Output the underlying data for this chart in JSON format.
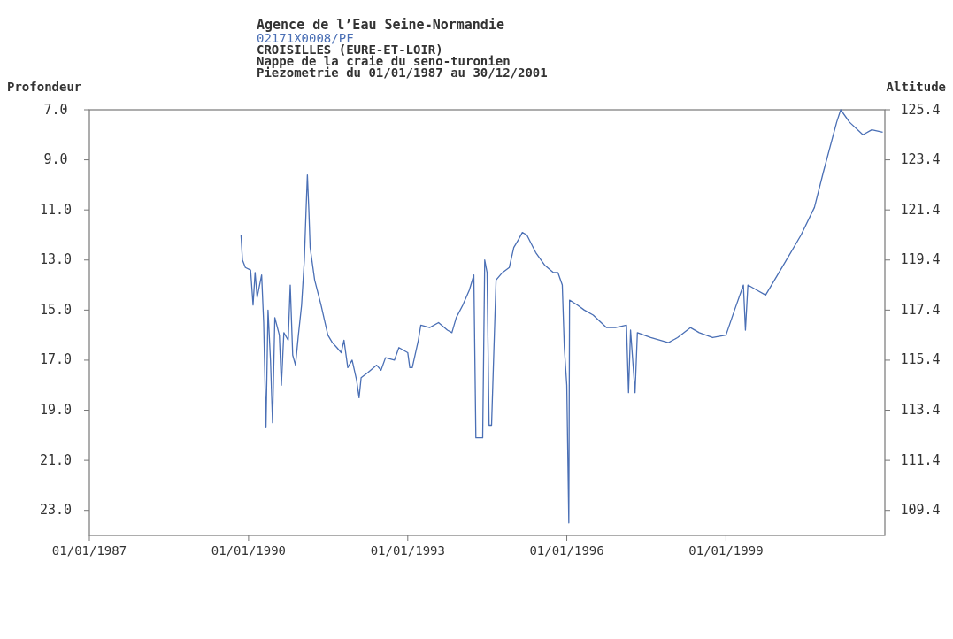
{
  "chart_data": {
    "type": "line",
    "title": "Agence de l’Eau Seine-Normandie",
    "subtitle": "02171X0008/PF",
    "annotations": [
      "CROISILLES (EURE-ET-LOIR)",
      "Nappe de la craie du seno-turonien",
      "Piezometrie du 01/01/1987 au 30/12/2001"
    ],
    "ylabel": "Profondeur",
    "y2label": "Altitude",
    "xlim": [
      "1987-01-01",
      "2001-12-30"
    ],
    "xticks": [
      {
        "value": "1987-01-01",
        "label": "01/01/1987"
      },
      {
        "value": "1990-01-01",
        "label": "01/01/1990"
      },
      {
        "value": "1993-01-01",
        "label": "01/01/1993"
      },
      {
        "value": "1996-01-01",
        "label": "01/01/1996"
      },
      {
        "value": "1999-01-01",
        "label": "01/01/1999"
      }
    ],
    "ylim": [
      24,
      7
    ],
    "yticks": [
      {
        "value": 7,
        "label": "7.0"
      },
      {
        "value": 9,
        "label": "9.0"
      },
      {
        "value": 11,
        "label": "11.0"
      },
      {
        "value": 13,
        "label": "13.0"
      },
      {
        "value": 15,
        "label": "15.0"
      },
      {
        "value": 17,
        "label": "17.0"
      },
      {
        "value": 19,
        "label": "19.0"
      },
      {
        "value": 21,
        "label": "21.0"
      },
      {
        "value": 23,
        "label": "23.0"
      }
    ],
    "y2lim": [
      108.4,
      125.4
    ],
    "y2ticks": [
      125.4,
      123.4,
      121.4,
      119.4,
      117.4,
      115.4,
      113.4,
      111.4,
      109.4
    ],
    "grid": false,
    "marker": "none",
    "line_style": "solid",
    "series": [
      {
        "color": "#4a6fb5",
        "x": [
          "1989-11-10",
          "1989-11-20",
          "1989-12-10",
          "1990-01-15",
          "1990-02-01",
          "1990-02-15",
          "1990-03-01",
          "1990-04-01",
          "1990-04-15",
          "1990-05-01",
          "1990-05-15",
          "1990-06-01",
          "1990-06-15",
          "1990-07-01",
          "1990-08-01",
          "1990-08-15",
          "1990-09-01",
          "1990-10-01",
          "1990-10-15",
          "1990-11-01",
          "1990-11-20",
          "1990-12-10",
          "1991-01-01",
          "1991-01-20",
          "1991-02-01",
          "1991-02-10",
          "1991-02-20",
          "1991-03-01",
          "1991-04-01",
          "1991-05-15",
          "1991-07-01",
          "1991-08-01",
          "1991-09-01",
          "1991-10-01",
          "1991-10-20",
          "1991-11-15",
          "1991-12-15",
          "1992-01-15",
          "1992-02-01",
          "1992-02-15",
          "1992-04-01",
          "1992-06-01",
          "1992-07-01",
          "1992-08-01",
          "1992-10-01",
          "1992-11-01",
          "1993-01-01",
          "1993-01-15",
          "1993-02-01",
          "1993-03-15",
          "1993-04-01",
          "1993-06-01",
          "1993-08-01",
          "1993-10-01",
          "1993-11-01",
          "1993-12-01",
          "1994-01-15",
          "1994-03-01",
          "1994-04-01",
          "1994-04-15",
          "1994-06-01",
          "1994-06-15",
          "1994-07-01",
          "1994-07-15",
          "1994-08-01",
          "1994-09-01",
          "1994-10-15",
          "1994-12-01",
          "1995-01-01",
          "1995-02-01",
          "1995-03-01",
          "1995-04-01",
          "1995-06-01",
          "1995-08-01",
          "1995-10-01",
          "1995-11-01",
          "1995-12-01",
          "1995-12-15",
          "1996-01-01",
          "1996-01-15",
          "1996-01-20",
          "1996-03-15",
          "1996-05-01",
          "1996-07-01",
          "1996-10-01",
          "1996-12-01",
          "1997-02-15",
          "1997-03-01",
          "1997-03-15",
          "1997-04-15",
          "1997-05-01",
          "1997-08-01",
          "1997-12-01",
          "1998-02-01",
          "1998-05-01",
          "1998-07-01",
          "1998-10-01",
          "1999-01-01",
          "1999-03-01",
          "1999-05-01",
          "1999-05-15",
          "1999-06-01",
          "1999-08-01",
          "1999-10-01",
          "2000-02-01",
          "2000-06-01",
          "2000-09-01",
          "2000-11-01",
          "2001-02-01",
          "2001-03-01",
          "2001-05-01",
          "2001-08-01",
          "2001-10-01",
          "2001-12-15"
        ],
        "values": [
          12.0,
          13.0,
          13.3,
          13.4,
          14.8,
          13.5,
          14.5,
          13.6,
          15.5,
          19.7,
          15.0,
          17.0,
          19.5,
          15.3,
          16.0,
          18.0,
          15.9,
          16.2,
          14.0,
          16.8,
          17.2,
          16.0,
          14.8,
          13.0,
          11.0,
          9.6,
          11.0,
          12.5,
          13.8,
          14.8,
          16.0,
          16.3,
          16.5,
          16.7,
          16.2,
          17.3,
          17.0,
          17.8,
          18.5,
          17.7,
          17.5,
          17.2,
          17.4,
          16.9,
          17.0,
          16.5,
          16.7,
          17.3,
          17.3,
          16.2,
          15.6,
          15.7,
          15.5,
          15.8,
          15.9,
          15.3,
          14.8,
          14.2,
          13.6,
          20.1,
          20.1,
          13.0,
          13.5,
          19.6,
          19.6,
          13.8,
          13.5,
          13.3,
          12.5,
          12.2,
          11.9,
          12.0,
          12.7,
          13.2,
          13.5,
          13.5,
          14.0,
          16.5,
          18.0,
          23.5,
          14.6,
          14.8,
          15.0,
          15.2,
          15.7,
          15.7,
          15.6,
          18.3,
          15.8,
          18.3,
          15.9,
          16.1,
          16.3,
          16.1,
          15.7,
          15.9,
          16.1,
          16.0,
          15.0,
          14.0,
          15.8,
          14.0,
          14.2,
          14.4,
          13.2,
          12.0,
          10.9,
          9.5,
          7.5,
          7.0,
          7.5,
          8.0,
          7.8,
          7.9
        ]
      }
    ]
  }
}
